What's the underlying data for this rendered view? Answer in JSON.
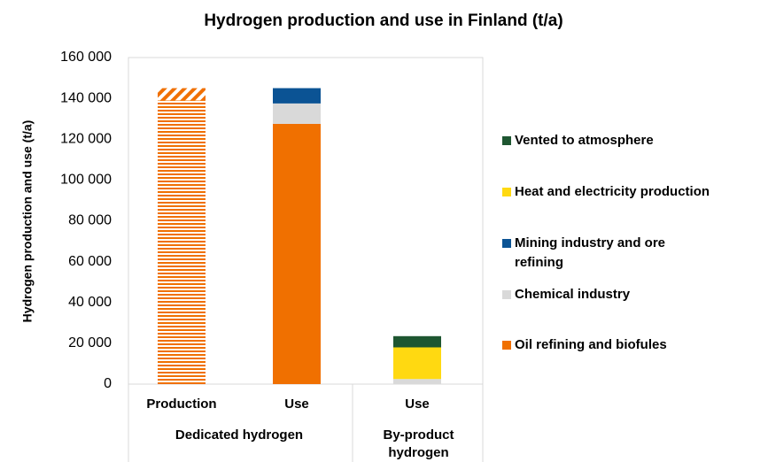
{
  "chart_data": {
    "type": "stacked-bar",
    "title": "Hydrogen production and use in Finland (t/a)",
    "y_label": "Hydrogen production and use (t/a)",
    "categories": [
      "Production",
      "Use",
      "Use"
    ],
    "groups": [
      {
        "label": "Dedicated hydrogen",
        "span": [
          0,
          1
        ]
      },
      {
        "label": "By-product hydrogen",
        "span": [
          2,
          2
        ]
      }
    ],
    "production": {
      "values": [
        139000,
        6000
      ],
      "color": "#f07000",
      "patterns": [
        "horizontal",
        "diagonal"
      ]
    },
    "series": [
      {
        "name": "Oil refining and biofules",
        "color": "#f07000",
        "values": [
          null,
          127500,
          null
        ]
      },
      {
        "name": "Chemical industry",
        "color": "#d9d9d9",
        "values": [
          null,
          10000,
          2500
        ]
      },
      {
        "name": "Mining industry and ore refining",
        "color": "#0b5394",
        "values": [
          null,
          7500,
          null
        ]
      },
      {
        "name": "Heat and electricity production",
        "color": "#ffd911",
        "values": [
          null,
          null,
          15500
        ]
      },
      {
        "name": "Vented to atmosphere",
        "color": "#1e5631",
        "values": [
          null,
          null,
          5500
        ]
      }
    ],
    "ylim": [
      0,
      160000
    ],
    "yticks": [
      0,
      {
        "value": 20000,
        "label": "20 000"
      },
      {
        "value": 40000,
        "label": "40 000"
      },
      {
        "value": 60000,
        "label": "60 000"
      },
      {
        "value": 80000,
        "label": "80 000"
      },
      {
        "value": 100000,
        "label": "100 000"
      },
      {
        "value": 120000,
        "label": "120 000"
      },
      {
        "value": 140000,
        "label": "140 000"
      },
      {
        "value": 160000,
        "label": "160 000"
      }
    ],
    "legend": "right"
  }
}
